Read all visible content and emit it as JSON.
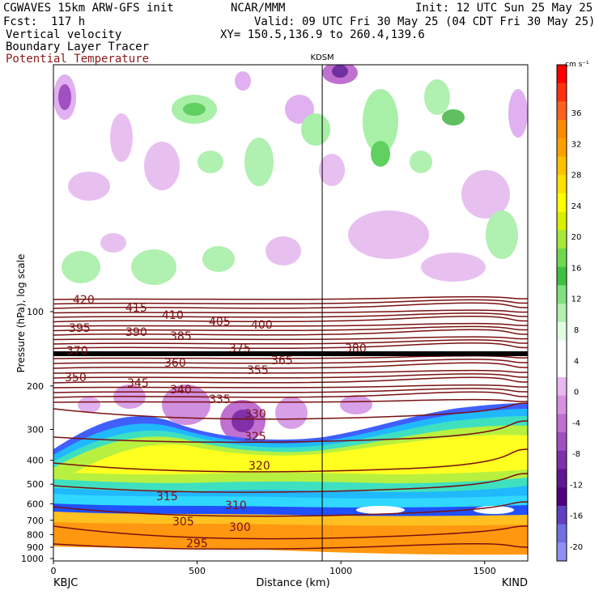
{
  "header": {
    "line1_left": "CGWAVES 15km ARW-GFS init",
    "line1_mid": "NCAR/MMM",
    "line1_right": "Init: 12 UTC Sun 25 May 25",
    "line2_left": "Fcst:  117 h",
    "line2_right": "Valid: 09 UTC Fri 30 May 25 (04 CDT Fri 30 May 25)",
    "line3_left": "Vertical velocity",
    "line3_right": "XY= 150.5,136.9 to 260.4,139.6",
    "line4_left": "Boundary Layer Tracer",
    "line5_left": "Potential Temperature",
    "line5_color": "#8b1a1a"
  },
  "chart_data": {
    "type": "heatmap",
    "title": "",
    "xlabel": "Distance (km)",
    "ylabel": "Pressure (hPa), log scale",
    "xlim": [
      0,
      1650
    ],
    "x_ticks": [
      0,
      500,
      1000,
      1500
    ],
    "x_tick_labels": [
      "0",
      "500",
      "1000",
      "1500"
    ],
    "y_scale": "log",
    "y_ticks": [
      100,
      200,
      300,
      400,
      500,
      600,
      700,
      800,
      900,
      1000
    ],
    "y_tick_labels": [
      "100",
      "200",
      "300",
      "400",
      "500",
      "600",
      "700",
      "800",
      "900",
      "1000"
    ],
    "endpoint_left": "KBJC",
    "endpoint_right": "KIND",
    "marker_label": "KDSM",
    "marker_x": 935,
    "colorbar": {
      "unit": "cm s⁻¹",
      "labels": [
        "36",
        "32",
        "28",
        "24",
        "20",
        "16",
        "12",
        "8",
        "4",
        "0",
        "-4",
        "-8",
        "-12",
        "-16",
        "-20"
      ],
      "colors": [
        "#ff0000",
        "#ff3010",
        "#ff6020",
        "#ff8a00",
        "#ffa000",
        "#ffc000",
        "#ffe000",
        "#ffff00",
        "#d8f000",
        "#a8e838",
        "#70d850",
        "#40c040",
        "#80e080",
        "#b0f0b0",
        "#e0ffe0",
        "#ffffff",
        "#ffffff",
        "#e8b8f0",
        "#d890e0",
        "#c070d0",
        "#a050c0",
        "#8030a8",
        "#601890",
        "#500080",
        "#6040c0",
        "#7070e0",
        "#9090f0"
      ]
    },
    "theta_labels": [
      "420",
      "415",
      "410",
      "405",
      "400",
      "395",
      "390",
      "385",
      "380",
      "375",
      "370",
      "365",
      "360",
      "355",
      "350",
      "345",
      "340",
      "335",
      "330",
      "325",
      "320",
      "315",
      "310",
      "305",
      "300",
      "295"
    ],
    "shading_legend": {
      "positive_vertical_velocity": "green",
      "negative_vertical_velocity": "purple",
      "boundary_layer_tracer": "yellow/orange/cyan/blue",
      "potential_temperature": "brown contours"
    }
  }
}
